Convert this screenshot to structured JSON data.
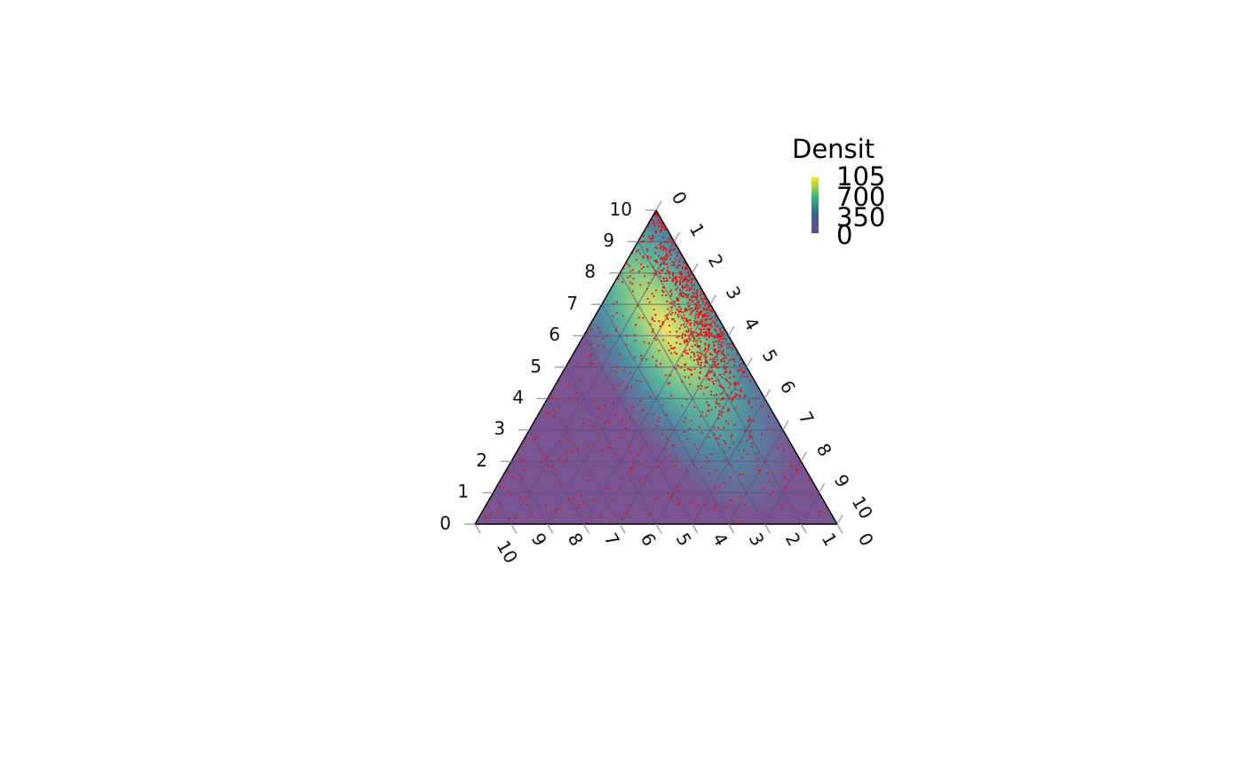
{
  "chart_data": {
    "type": "ternary-density",
    "axis_ticks": {
      "left": [
        "0",
        "1",
        "2",
        "3",
        "4",
        "5",
        "6",
        "7",
        "8",
        "9",
        "10"
      ],
      "right": [
        "0",
        "1",
        "2",
        "3",
        "4",
        "5",
        "6",
        "7",
        "8",
        "9",
        "10"
      ],
      "bottom": [
        "10",
        "9",
        "8",
        "7",
        "6",
        "5",
        "4",
        "3",
        "2",
        "1",
        "0"
      ]
    },
    "axis_range": [
      0,
      10
    ],
    "grid_step": 1,
    "legend": {
      "title": "Densit",
      "labels": [
        "105",
        "700",
        "350",
        "0"
      ],
      "colors": [
        "#fde725",
        "#35b779",
        "#31688e",
        "#440154"
      ],
      "placement": "top-right"
    },
    "density_peak": {
      "left": 6.5,
      "right": 3.0,
      "bottom": 0.5
    },
    "colors": {
      "point": "#ff0000",
      "outline": "#000000",
      "tick": "#a0a0a0",
      "grid": "#5e4a7e"
    }
  }
}
